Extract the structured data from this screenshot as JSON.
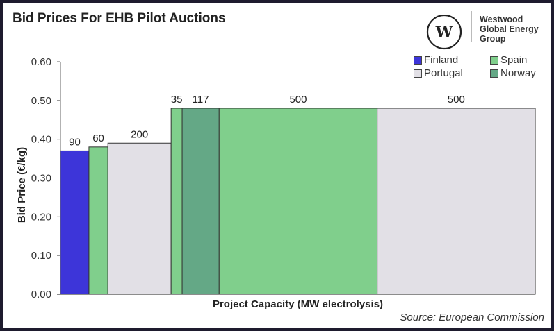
{
  "header": {
    "title": "Bid Prices For EHB Pilot Auctions"
  },
  "brand": {
    "logo_letter": "W",
    "lines": [
      "Westwood",
      "Global Energy",
      "Group"
    ]
  },
  "source": "Source: European Commission",
  "colors": {
    "Finland": "#3d35d9",
    "Spain": "#80cf8c",
    "Portugal": "#e2e0e6",
    "Norway": "#64a886"
  },
  "chart_data": {
    "type": "bar",
    "variant": "variable-width",
    "title": "Bid Prices For EHB Pilot Auctions",
    "xlabel": "Project Capacity (MW electrolysis)",
    "ylabel": "Bid Price (€/kg)",
    "ylim": [
      0,
      0.6
    ],
    "yticks": [
      "0.00",
      "0.10",
      "0.20",
      "0.30",
      "0.40",
      "0.50",
      "0.60"
    ],
    "grid": false,
    "legend": {
      "placement": "top-right",
      "entries": [
        "Finland",
        "Spain",
        "Portugal",
        "Norway"
      ]
    },
    "bars": [
      {
        "country": "Finland",
        "capacity": 90,
        "price": 0.37,
        "label": "90"
      },
      {
        "country": "Spain",
        "capacity": 60,
        "price": 0.38,
        "label": "60"
      },
      {
        "country": "Portugal",
        "capacity": 200,
        "price": 0.39,
        "label": "200"
      },
      {
        "country": "Spain",
        "capacity": 35,
        "price": 0.48,
        "label": "35"
      },
      {
        "country": "Norway",
        "capacity": 117,
        "price": 0.48,
        "label": "117"
      },
      {
        "country": "Spain",
        "capacity": 500,
        "price": 0.48,
        "label": "500"
      },
      {
        "country": "Portugal",
        "capacity": 500,
        "price": 0.48,
        "label": "500"
      }
    ]
  }
}
